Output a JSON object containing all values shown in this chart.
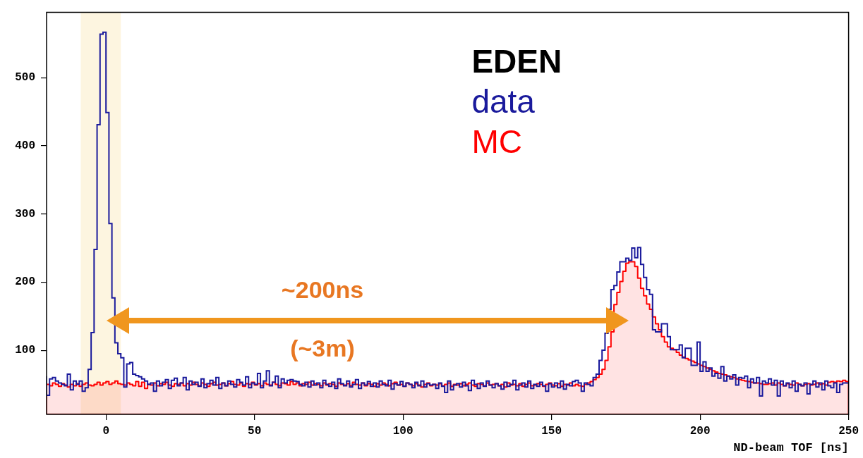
{
  "chart_data": {
    "type": "histogram",
    "xlabel": "ND-beam TOF [ns]",
    "legend_title": "EDEN",
    "legend": "top right",
    "grid": false,
    "xlim": [
      -20,
      250
    ],
    "xticks": [
      0,
      50,
      100,
      150,
      200,
      250
    ],
    "ylim": [
      6,
      596
    ],
    "yticks": [
      100,
      200,
      300,
      400,
      500
    ],
    "bins": [
      -20,
      -19,
      -18,
      -17,
      -16,
      -15,
      -14,
      -13,
      -12,
      -11,
      -10,
      -9,
      -8,
      -7,
      -6,
      -5,
      -4,
      -3,
      -2,
      -1,
      0,
      1,
      2,
      3,
      4,
      5,
      6,
      7,
      8,
      9,
      10,
      11,
      12,
      13,
      14,
      15,
      16,
      17,
      18,
      19,
      20,
      21,
      22,
      23,
      24,
      25,
      26,
      27,
      28,
      29,
      30,
      31,
      32,
      33,
      34,
      35,
      36,
      37,
      38,
      39,
      40,
      41,
      42,
      43,
      44,
      45,
      46,
      47,
      48,
      49,
      50,
      51,
      52,
      53,
      54,
      55,
      56,
      57,
      58,
      59,
      60,
      61,
      62,
      63,
      64,
      65,
      66,
      67,
      68,
      69,
      70,
      71,
      72,
      73,
      74,
      75,
      76,
      77,
      78,
      79,
      80,
      81,
      82,
      83,
      84,
      85,
      86,
      87,
      88,
      89,
      90,
      91,
      92,
      93,
      94,
      95,
      96,
      97,
      98,
      99,
      100,
      101,
      102,
      103,
      104,
      105,
      106,
      107,
      108,
      109,
      110,
      111,
      112,
      113,
      114,
      115,
      116,
      117,
      118,
      119,
      120,
      121,
      122,
      123,
      124,
      125,
      126,
      127,
      128,
      129,
      130,
      131,
      132,
      133,
      134,
      135,
      136,
      137,
      138,
      139,
      140,
      141,
      142,
      143,
      144,
      145,
      146,
      147,
      148,
      149,
      150,
      151,
      152,
      153,
      154,
      155,
      156,
      157,
      158,
      159,
      160,
      161,
      162,
      163,
      164,
      165,
      166,
      167,
      168,
      169,
      170,
      171,
      172,
      173,
      174,
      175,
      176,
      177,
      178,
      179,
      180,
      181,
      182,
      183,
      184,
      185,
      186,
      187,
      188,
      189,
      190,
      191,
      192,
      193,
      194,
      195,
      196,
      197,
      198,
      199,
      200,
      201,
      202,
      203,
      204,
      205,
      206,
      207,
      208,
      209,
      210,
      211,
      212,
      213,
      214,
      215,
      216,
      217,
      218,
      219,
      220,
      221,
      222,
      223,
      224,
      225,
      226,
      227,
      228,
      229,
      230,
      231,
      232,
      233,
      234,
      235,
      236,
      237,
      238,
      239,
      240,
      241,
      242,
      243,
      244,
      245,
      246,
      247,
      248,
      249,
      250
    ],
    "series": [
      {
        "name": "data",
        "color": "#1a1a9c",
        "values": [
          62,
          34,
          58,
          60,
          55,
          52,
          50,
          48,
          65,
          42,
          55,
          50,
          55,
          40,
          45,
          72,
          126,
          248,
          431,
          564,
          567,
          449,
          286,
          177,
          111,
          95,
          89,
          46,
          80,
          82,
          65,
          63,
          61,
          58,
          55,
          50,
          52,
          40,
          55,
          48,
          53,
          57,
          44,
          56,
          59,
          48,
          52,
          60,
          42,
          55,
          50,
          53,
          47,
          58,
          45,
          51,
          56,
          49,
          60,
          44,
          52,
          48,
          55,
          50,
          46,
          57,
          53,
          49,
          61,
          45,
          52,
          50,
          66,
          45,
          55,
          70,
          48,
          53,
          62,
          45,
          58,
          52,
          56,
          57,
          55,
          54,
          50,
          48,
          53,
          46,
          55,
          49,
          52,
          45,
          56,
          50,
          47,
          53,
          44,
          58,
          51,
          48,
          55,
          46,
          50,
          57,
          44,
          52,
          49,
          54,
          47,
          52,
          46,
          55,
          50,
          48,
          56,
          43,
          51,
          49,
          54,
          47,
          52,
          50,
          45,
          53,
          48,
          55,
          46,
          51,
          49,
          50,
          44,
          52,
          47,
          38,
          55,
          42,
          49,
          51,
          46,
          53,
          48,
          41,
          56,
          50,
          44,
          52,
          47,
          55,
          49,
          45,
          51,
          48,
          43,
          53,
          47,
          50,
          56,
          42,
          49,
          52,
          46,
          55,
          44,
          50,
          47,
          53,
          48,
          40,
          51,
          46,
          52,
          45,
          55,
          43,
          50,
          48,
          54,
          56,
          52,
          40,
          52,
          50,
          48,
          60,
          65,
          85,
          100,
          125,
          160,
          189,
          195,
          215,
          230,
          230,
          235,
          232,
          250,
          236,
          251,
          226,
          207,
          189,
          182,
          130,
          127,
          127,
          139,
          139,
          120,
          101,
          101,
          101,
          108,
          89,
          103,
          103,
          78,
          78,
          112,
          69,
          83,
          69,
          74,
          62,
          66,
          59,
          76,
          55,
          62,
          58,
          64,
          49,
          60,
          59,
          62,
          45,
          58,
          52,
          60,
          33,
          55,
          52,
          58,
          49,
          56,
          33,
          55,
          48,
          52,
          45,
          55,
          40,
          50,
          48,
          52,
          36,
          50,
          55,
          46,
          52,
          42,
          55,
          48,
          45,
          52,
          38,
          50,
          52
        ]
      },
      {
        "name": "MC",
        "color": "#ff0000",
        "values": [
          50,
          48,
          52,
          50,
          47,
          51,
          49,
          46,
          50,
          48,
          51,
          47,
          50,
          52,
          49,
          48,
          50,
          53,
          49,
          52,
          54,
          50,
          52,
          55,
          51,
          50,
          49,
          52,
          50,
          48,
          54,
          47,
          53,
          44,
          50,
          49,
          52,
          48,
          51,
          50,
          53,
          49,
          47,
          51,
          50,
          52,
          48,
          51,
          49,
          53,
          50,
          48,
          52,
          50,
          47,
          51,
          53,
          49,
          50,
          52,
          48,
          51,
          54,
          50,
          49,
          52,
          47,
          51,
          50,
          53,
          49,
          51,
          48,
          52,
          50,
          49,
          53,
          50,
          48,
          52,
          51,
          49,
          54,
          50,
          52,
          48,
          51,
          50,
          53,
          49,
          51,
          50,
          48,
          52,
          49,
          51,
          50,
          47,
          52,
          50,
          49,
          51,
          48,
          53,
          50,
          49,
          52,
          48,
          51,
          50,
          47,
          51,
          49,
          52,
          50,
          48,
          51,
          53,
          49,
          50,
          47,
          52,
          50,
          48,
          51,
          49,
          46,
          50,
          52,
          48,
          50,
          49,
          51,
          48,
          50,
          52,
          47,
          50,
          49,
          51,
          48,
          50,
          52,
          49,
          47,
          51,
          50,
          48,
          52,
          49,
          50,
          51,
          48,
          50,
          46,
          52,
          49,
          50,
          48,
          51,
          47,
          50,
          52,
          48,
          49,
          51,
          50,
          47,
          50,
          52,
          49,
          48,
          51,
          47,
          50,
          49,
          52,
          48,
          50,
          48,
          47,
          50,
          52,
          54,
          57,
          60,
          65,
          72,
          85,
          105,
          127,
          167,
          185,
          201,
          216,
          228,
          230,
          230,
          223,
          206,
          191,
          180,
          168,
          160,
          149,
          139,
          130,
          120,
          112,
          105,
          103,
          101,
          97,
          93,
          90,
          88,
          86,
          84,
          82,
          80,
          78,
          76,
          74,
          72,
          70,
          68,
          66,
          65,
          64,
          62,
          61,
          60,
          58,
          57,
          56,
          55,
          54,
          53,
          52,
          52,
          51,
          50,
          50,
          51,
          52,
          49,
          52,
          50,
          48,
          51,
          50,
          49,
          52,
          50,
          48,
          50,
          51,
          49,
          50,
          52,
          50,
          51,
          49,
          53,
          54,
          53,
          55,
          54,
          56,
          54
        ]
      }
    ],
    "bands": [
      {
        "axis": "x",
        "from": -8.5,
        "to": 5,
        "color": "#fdf5e0"
      }
    ],
    "annotations": [
      "~200ns",
      "(~3m)"
    ]
  }
}
